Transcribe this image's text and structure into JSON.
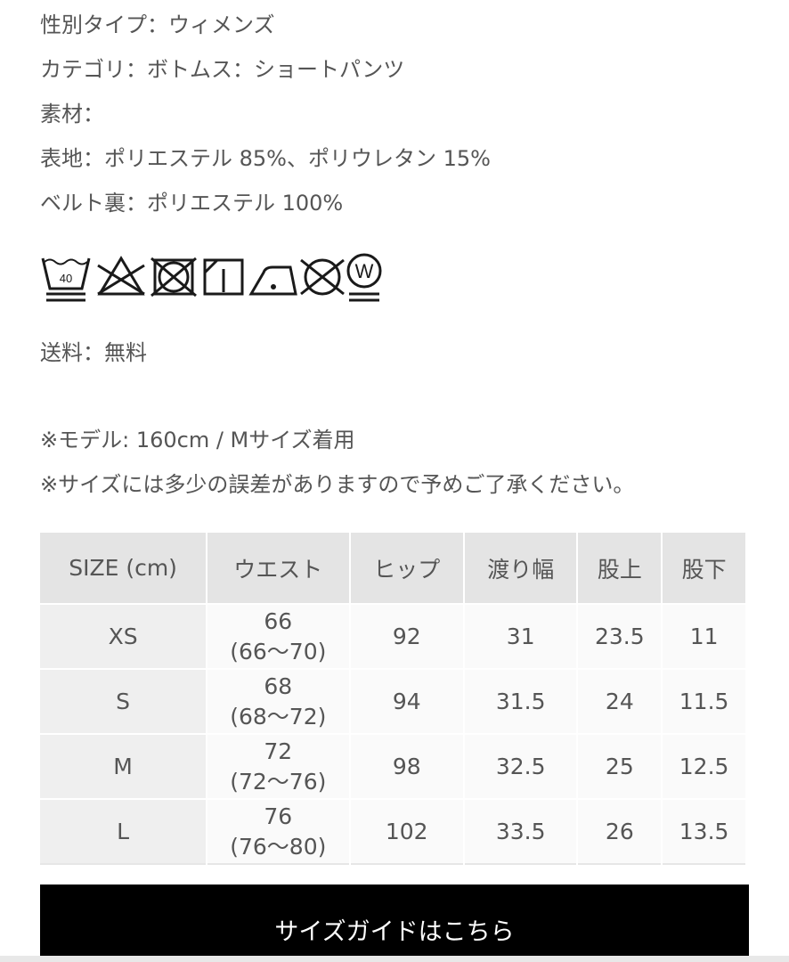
{
  "details": {
    "gender": "性別タイプ：ウィメンズ",
    "category": "カテゴリ：ボトムス：ショートパンツ",
    "material_label": "素材：",
    "outer": "表地：ポリエステル 85%、ポリウレタン 15%",
    "belt_lining": "ベルト裏：ポリエステル 100%"
  },
  "care_icons": [
    "wash-40-gentle-icon",
    "no-bleach-icon",
    "no-tumble-dry-icon",
    "line-dry-shade-icon",
    "iron-low-icon",
    "no-dry-clean-icon",
    "wet-clean-gentle-icon"
  ],
  "care_wash_temp": "40",
  "care_wet_letter": "W",
  "shipping": "送料：無料",
  "notes": {
    "model": "※モデル: 160cm / Mサイズ着用",
    "tolerance": "※サイズには多少の誤差がありますので予めご了承ください。"
  },
  "size_table": {
    "headers": [
      "SIZE (cm)",
      "ウエスト",
      "ヒップ",
      "渡り幅",
      "股上",
      "股下"
    ],
    "rows": [
      {
        "size": "XS",
        "waist": "66",
        "waist_range": "(66〜70)",
        "hip": "92",
        "thigh": "31",
        "rise": "23.5",
        "inseam": "11"
      },
      {
        "size": "S",
        "waist": "68",
        "waist_range": "(68〜72)",
        "hip": "94",
        "thigh": "31.5",
        "rise": "24",
        "inseam": "11.5"
      },
      {
        "size": "M",
        "waist": "72",
        "waist_range": "(72〜76)",
        "hip": "98",
        "thigh": "32.5",
        "rise": "25",
        "inseam": "12.5"
      },
      {
        "size": "L",
        "waist": "76",
        "waist_range": "(76〜80)",
        "hip": "102",
        "thigh": "33.5",
        "rise": "26",
        "inseam": "13.5"
      }
    ]
  },
  "size_guide_button": "サイズガイドはこちら"
}
